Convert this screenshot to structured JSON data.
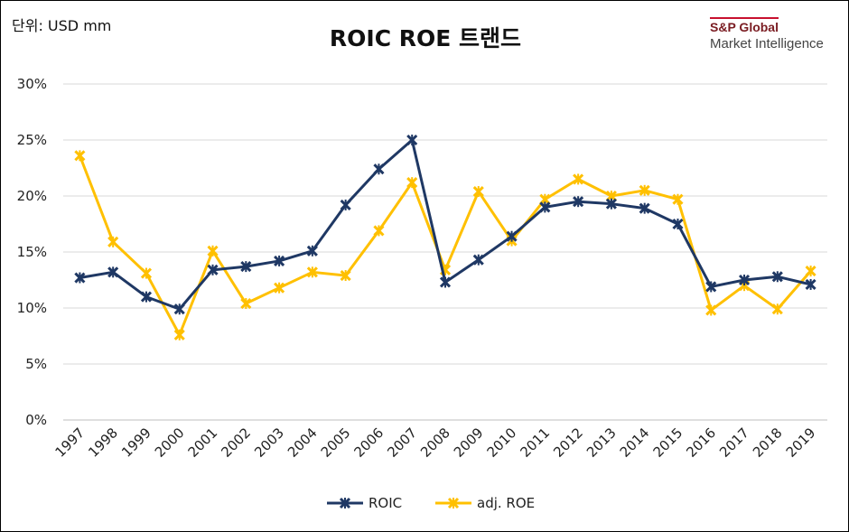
{
  "unit_label": "단위: USD mm",
  "logo": {
    "line1": "S&P Global",
    "line2": "Market Intelligence"
  },
  "colors": {
    "roic": "#1f3864",
    "roe": "#ffc000",
    "grid": "#d9d9d9"
  },
  "chart_data": {
    "type": "line",
    "title": "ROIC ROE 트랜드",
    "xlabel": "",
    "ylabel": "",
    "categories": [
      "1997",
      "1998",
      "1999",
      "2000",
      "2001",
      "2002",
      "2003",
      "2004",
      "2005",
      "2006",
      "2007",
      "2008",
      "2009",
      "2010",
      "2011",
      "2012",
      "2013",
      "2014",
      "2015",
      "2016",
      "2017",
      "2018",
      "2019"
    ],
    "y_ticks": [
      "0%",
      "5%",
      "10%",
      "15%",
      "20%",
      "25%",
      "30%"
    ],
    "ylim": [
      0,
      30
    ],
    "grid": true,
    "legend": "bottom",
    "series": [
      {
        "name": "ROIC",
        "color": "#1f3864",
        "values": [
          12.7,
          13.2,
          11.0,
          9.9,
          13.4,
          13.7,
          14.2,
          15.1,
          19.2,
          22.4,
          25.0,
          12.3,
          14.3,
          16.4,
          19.0,
          19.5,
          19.3,
          18.9,
          17.5,
          11.9,
          12.5,
          12.8,
          12.1
        ]
      },
      {
        "name": "adj. ROE",
        "color": "#ffc000",
        "values": [
          23.6,
          15.9,
          13.1,
          7.6,
          15.1,
          10.4,
          11.8,
          13.2,
          12.9,
          16.9,
          21.2,
          13.4,
          20.4,
          16.0,
          19.7,
          21.5,
          20.0,
          20.5,
          19.7,
          9.8,
          12.0,
          9.9,
          13.3
        ]
      }
    ]
  }
}
